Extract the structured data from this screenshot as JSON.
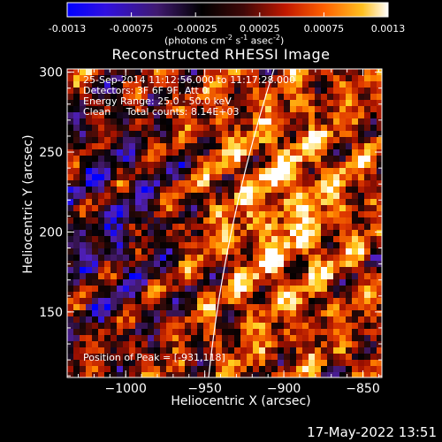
{
  "colorbar": {
    "tick_labels": [
      "-0.0013",
      "-0.00075",
      "-0.00025",
      "0.00025",
      "0.00075",
      "0.0013"
    ],
    "units_label": "(photons cm",
    "units_parts": [
      "(photons cm",
      "-2",
      " s",
      "-1",
      " asec",
      "-2",
      ")"
    ]
  },
  "title": "Reconstructed RHESSI Image",
  "info": {
    "time_range": "25-Sep-2014 11:12:56.000 to 11:17:28.000",
    "detectors": "Detectors: 3F 6F 9F, Att 0",
    "energy_range": "Energy Range: 25.0 - 50.0 keV",
    "method": "Clean     Total counts: 8.14E+03",
    "peak": "Position of Peak = [-931,118]"
  },
  "axes": {
    "xlabel": "Heliocentric X (arcsec)",
    "ylabel": "Heliocentric Y (arcsec)",
    "x_ticks": [
      "-1000",
      "-950",
      "-900",
      "-850"
    ],
    "y_ticks": [
      "150",
      "200",
      "250",
      "300"
    ],
    "x_range": [
      -1037,
      -838
    ],
    "y_range": [
      109,
      302
    ]
  },
  "footer": {
    "date": "17-May-2022 13:51"
  },
  "colors": {
    "background": "#000000",
    "text": "#ffffff",
    "colormap": [
      "#0000ff",
      "#5020c8",
      "#401860",
      "#000000",
      "#300a0a",
      "#a01000",
      "#e03a00",
      "#ff8000",
      "#ffd020",
      "#ffffff"
    ]
  }
}
